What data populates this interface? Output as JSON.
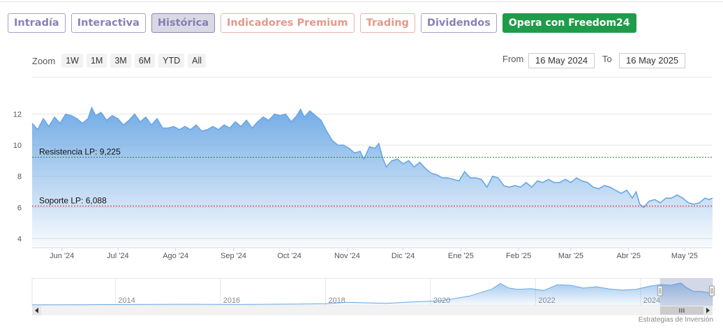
{
  "tabs": [
    {
      "label": "Intradía",
      "style": "normal"
    },
    {
      "label": "Interactiva",
      "style": "normal"
    },
    {
      "label": "Histórica",
      "style": "active"
    },
    {
      "label": "Indicadores Premium",
      "style": "premium"
    },
    {
      "label": "Trading",
      "style": "premium"
    },
    {
      "label": "Dividendos",
      "style": "normal"
    },
    {
      "label": "Opera con Freedom24",
      "style": "green"
    }
  ],
  "zoom": {
    "label": "Zoom",
    "buttons": [
      "1W",
      "1M",
      "3M",
      "6M",
      "YTD",
      "All"
    ]
  },
  "range": {
    "from_label": "From",
    "from_value": "16 May 2024",
    "to_label": "To",
    "to_value": "16 May 2025"
  },
  "credit": "Estrategias de Inversión",
  "colors": {
    "series": "#6aa7e4",
    "resistance": "#2e7d32",
    "support": "#c62828",
    "navigator_mask": "#6a7fb3"
  },
  "chart_data": {
    "type": "area",
    "ylim": [
      3.5,
      13.5
    ],
    "yticks": [
      4,
      6,
      8,
      10,
      12
    ],
    "x_start": "2024-05-16",
    "x_end": "2025-05-16",
    "xticks": [
      {
        "date": "2024-06-01",
        "label": "Jun '24"
      },
      {
        "date": "2024-07-01",
        "label": "Jul '24"
      },
      {
        "date": "2024-08-01",
        "label": "Ago '24"
      },
      {
        "date": "2024-09-01",
        "label": "Sep '24"
      },
      {
        "date": "2024-10-01",
        "label": "Oct '24"
      },
      {
        "date": "2024-11-01",
        "label": "Nov '24"
      },
      {
        "date": "2024-12-01",
        "label": "Dic '24"
      },
      {
        "date": "2025-01-01",
        "label": "Ene '25"
      },
      {
        "date": "2025-02-01",
        "label": "Feb '25"
      },
      {
        "date": "2025-03-01",
        "label": "Mar '25"
      },
      {
        "date": "2025-04-01",
        "label": "Abr '25"
      },
      {
        "date": "2025-05-01",
        "label": "May '25"
      }
    ],
    "series": [
      {
        "points": [
          [
            "2024-05-16",
            11.4
          ],
          [
            "2024-05-19",
            11.0
          ],
          [
            "2024-05-22",
            11.7
          ],
          [
            "2024-05-25",
            11.2
          ],
          [
            "2024-05-28",
            11.8
          ],
          [
            "2024-05-31",
            11.4
          ],
          [
            "2024-06-03",
            12.0
          ],
          [
            "2024-06-06",
            11.9
          ],
          [
            "2024-06-09",
            11.7
          ],
          [
            "2024-06-12",
            11.4
          ],
          [
            "2024-06-15",
            11.7
          ],
          [
            "2024-06-17",
            12.4
          ],
          [
            "2024-06-19",
            11.9
          ],
          [
            "2024-06-22",
            12.1
          ],
          [
            "2024-06-25",
            11.6
          ],
          [
            "2024-06-28",
            11.9
          ],
          [
            "2024-07-01",
            11.7
          ],
          [
            "2024-07-04",
            11.3
          ],
          [
            "2024-07-07",
            11.6
          ],
          [
            "2024-07-10",
            12.0
          ],
          [
            "2024-07-13",
            11.5
          ],
          [
            "2024-07-16",
            11.8
          ],
          [
            "2024-07-19",
            11.3
          ],
          [
            "2024-07-22",
            11.7
          ],
          [
            "2024-07-25",
            11.1
          ],
          [
            "2024-07-28",
            11.1
          ],
          [
            "2024-07-31",
            11.2
          ],
          [
            "2024-08-03",
            11.0
          ],
          [
            "2024-08-06",
            11.2
          ],
          [
            "2024-08-09",
            11.0
          ],
          [
            "2024-08-12",
            11.3
          ],
          [
            "2024-08-15",
            10.9
          ],
          [
            "2024-08-18",
            11.0
          ],
          [
            "2024-08-21",
            11.2
          ],
          [
            "2024-08-24",
            11.0
          ],
          [
            "2024-08-27",
            11.3
          ],
          [
            "2024-08-30",
            11.1
          ],
          [
            "2024-09-02",
            11.5
          ],
          [
            "2024-09-05",
            11.2
          ],
          [
            "2024-09-08",
            11.6
          ],
          [
            "2024-09-11",
            11.1
          ],
          [
            "2024-09-14",
            11.5
          ],
          [
            "2024-09-17",
            11.8
          ],
          [
            "2024-09-20",
            11.6
          ],
          [
            "2024-09-23",
            12.0
          ],
          [
            "2024-09-26",
            11.9
          ],
          [
            "2024-09-29",
            12.0
          ],
          [
            "2024-10-02",
            11.5
          ],
          [
            "2024-10-05",
            11.9
          ],
          [
            "2024-10-07",
            12.3
          ],
          [
            "2024-10-09",
            11.8
          ],
          [
            "2024-10-12",
            12.2
          ],
          [
            "2024-10-15",
            11.9
          ],
          [
            "2024-10-18",
            11.6
          ],
          [
            "2024-10-21",
            10.9
          ],
          [
            "2024-10-24",
            10.3
          ],
          [
            "2024-10-27",
            10.0
          ],
          [
            "2024-10-30",
            10.0
          ],
          [
            "2024-11-02",
            9.8
          ],
          [
            "2024-11-05",
            9.5
          ],
          [
            "2024-11-08",
            9.6
          ],
          [
            "2024-11-10",
            9.1
          ],
          [
            "2024-11-13",
            9.9
          ],
          [
            "2024-11-16",
            9.8
          ],
          [
            "2024-11-18",
            10.1
          ],
          [
            "2024-11-20",
            9.2
          ],
          [
            "2024-11-22",
            8.6
          ],
          [
            "2024-11-25",
            9.0
          ],
          [
            "2024-11-28",
            9.1
          ],
          [
            "2024-12-01",
            8.8
          ],
          [
            "2024-12-04",
            9.0
          ],
          [
            "2024-12-07",
            8.6
          ],
          [
            "2024-12-10",
            8.9
          ],
          [
            "2024-12-13",
            8.5
          ],
          [
            "2024-12-16",
            8.2
          ],
          [
            "2024-12-19",
            8.1
          ],
          [
            "2024-12-22",
            7.9
          ],
          [
            "2024-12-25",
            7.9
          ],
          [
            "2024-12-28",
            7.8
          ],
          [
            "2024-12-31",
            7.7
          ],
          [
            "2025-01-03",
            8.3
          ],
          [
            "2025-01-06",
            7.9
          ],
          [
            "2025-01-09",
            7.9
          ],
          [
            "2025-01-12",
            7.8
          ],
          [
            "2025-01-15",
            7.3
          ],
          [
            "2025-01-18",
            8.0
          ],
          [
            "2025-01-21",
            7.9
          ],
          [
            "2025-01-24",
            7.4
          ],
          [
            "2025-01-27",
            7.3
          ],
          [
            "2025-01-30",
            7.4
          ],
          [
            "2025-02-02",
            7.3
          ],
          [
            "2025-02-05",
            7.6
          ],
          [
            "2025-02-08",
            7.3
          ],
          [
            "2025-02-11",
            7.7
          ],
          [
            "2025-02-14",
            7.6
          ],
          [
            "2025-02-17",
            7.8
          ],
          [
            "2025-02-20",
            7.6
          ],
          [
            "2025-02-23",
            7.6
          ],
          [
            "2025-02-26",
            7.8
          ],
          [
            "2025-03-01",
            7.6
          ],
          [
            "2025-03-04",
            7.9
          ],
          [
            "2025-03-07",
            7.7
          ],
          [
            "2025-03-10",
            7.6
          ],
          [
            "2025-03-13",
            7.3
          ],
          [
            "2025-03-16",
            7.2
          ],
          [
            "2025-03-19",
            7.4
          ],
          [
            "2025-03-22",
            7.3
          ],
          [
            "2025-03-25",
            7.1
          ],
          [
            "2025-03-28",
            6.9
          ],
          [
            "2025-03-31",
            7.1
          ],
          [
            "2025-04-03",
            6.6
          ],
          [
            "2025-04-05",
            7.0
          ],
          [
            "2025-04-07",
            6.2
          ],
          [
            "2025-04-09",
            6.0
          ],
          [
            "2025-04-12",
            6.4
          ],
          [
            "2025-04-15",
            6.5
          ],
          [
            "2025-04-18",
            6.3
          ],
          [
            "2025-04-21",
            6.6
          ],
          [
            "2025-04-24",
            6.6
          ],
          [
            "2025-04-27",
            6.8
          ],
          [
            "2025-04-30",
            6.6
          ],
          [
            "2025-05-03",
            6.3
          ],
          [
            "2025-05-06",
            6.2
          ],
          [
            "2025-05-09",
            6.3
          ],
          [
            "2025-05-12",
            6.6
          ],
          [
            "2025-05-14",
            6.5
          ],
          [
            "2025-05-16",
            6.6
          ]
        ]
      }
    ],
    "levels": [
      {
        "label": "Resistencia LP: 9,225",
        "value": 9.225,
        "color": "resistance"
      },
      {
        "label": "Soporte LP: 6,088",
        "value": 6.088,
        "color": "support"
      }
    ],
    "navigator": {
      "x_start": "2012-06-01",
      "x_end": "2025-05-16",
      "ylim": [
        0,
        14
      ],
      "ticks": [
        {
          "date": "2014-01-01",
          "label": "2014"
        },
        {
          "date": "2016-01-01",
          "label": "2016"
        },
        {
          "date": "2018-01-01",
          "label": "2018"
        },
        {
          "date": "2020-01-01",
          "label": "2020"
        },
        {
          "date": "2022-01-01",
          "label": "2022"
        },
        {
          "date": "2024-01-01",
          "label": "2024"
        }
      ],
      "points": [
        [
          "2012-06-01",
          0.4
        ],
        [
          "2013-06-01",
          0.5
        ],
        [
          "2014-06-01",
          0.6
        ],
        [
          "2015-06-01",
          0.7
        ],
        [
          "2016-06-01",
          0.6
        ],
        [
          "2017-06-01",
          0.8
        ],
        [
          "2018-01-01",
          1.0
        ],
        [
          "2018-06-01",
          1.8
        ],
        [
          "2018-10-01",
          1.5
        ],
        [
          "2019-03-01",
          1.2
        ],
        [
          "2019-09-01",
          2.0
        ],
        [
          "2020-03-01",
          2.6
        ],
        [
          "2020-06-01",
          3.6
        ],
        [
          "2020-10-01",
          5.2
        ],
        [
          "2021-01-01",
          7.5
        ],
        [
          "2021-03-01",
          8.8
        ],
        [
          "2021-05-01",
          12.0
        ],
        [
          "2021-07-01",
          9.5
        ],
        [
          "2021-09-01",
          8.8
        ],
        [
          "2021-12-01",
          9.2
        ],
        [
          "2022-03-01",
          8.2
        ],
        [
          "2022-06-01",
          11.3
        ],
        [
          "2022-09-01",
          11.0
        ],
        [
          "2022-12-01",
          9.5
        ],
        [
          "2023-03-01",
          10.2
        ],
        [
          "2023-06-01",
          9.0
        ],
        [
          "2023-09-01",
          8.4
        ],
        [
          "2023-12-01",
          8.8
        ],
        [
          "2024-03-01",
          10.5
        ],
        [
          "2024-05-16",
          11.4
        ],
        [
          "2024-08-01",
          11.0
        ],
        [
          "2024-10-07",
          12.3
        ],
        [
          "2024-11-15",
          9.8
        ],
        [
          "2025-01-01",
          7.7
        ],
        [
          "2025-03-01",
          7.6
        ],
        [
          "2025-05-16",
          6.6
        ]
      ]
    }
  }
}
